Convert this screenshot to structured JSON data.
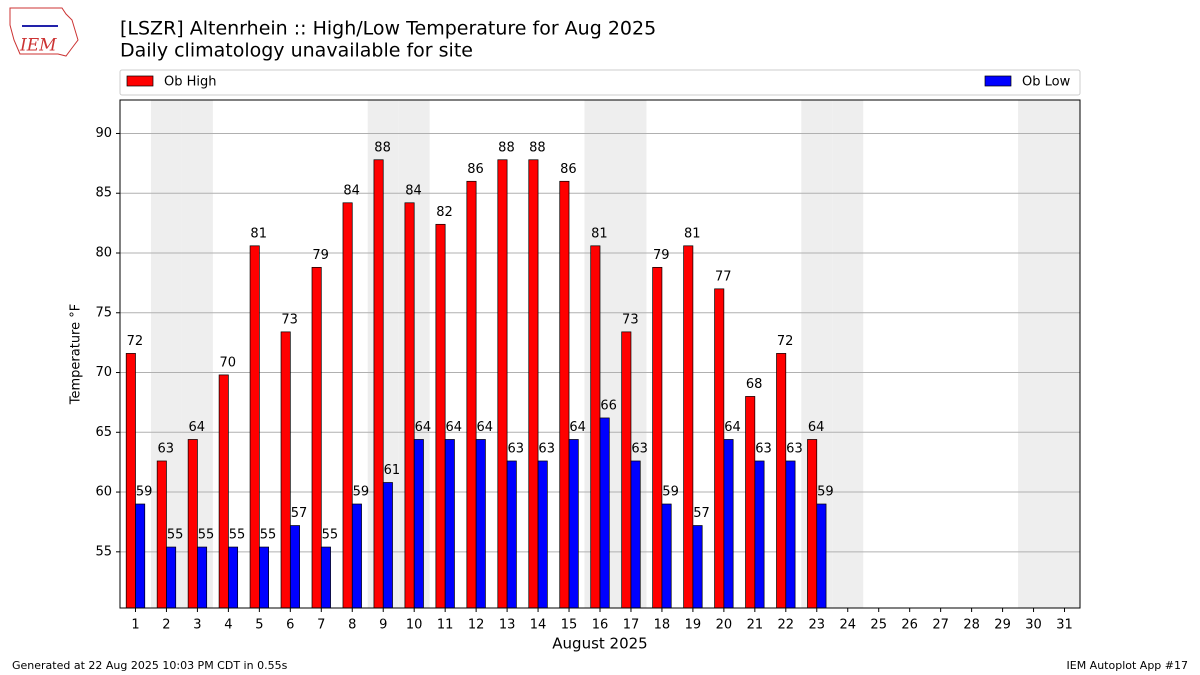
{
  "chart_data": {
    "type": "bar",
    "title": "[LSZR] Altenrhein :: High/Low Temperature for Aug 2025",
    "subtitle": "Daily climatology unavailable for site",
    "xlabel": "August 2025",
    "ylabel": "Temperature °F",
    "logo_text": "IEM",
    "footer_left": "Generated at 22 Aug 2025 10:03 PM CDT in 0.55s",
    "footer_right": "IEM Autoplot App #17",
    "categories": [
      "1",
      "2",
      "3",
      "4",
      "5",
      "6",
      "7",
      "8",
      "9",
      "10",
      "11",
      "12",
      "13",
      "14",
      "15",
      "16",
      "17",
      "18",
      "19",
      "20",
      "21",
      "22",
      "23",
      "24",
      "25",
      "26",
      "27",
      "28",
      "29",
      "30",
      "31"
    ],
    "shaded_categories": [
      "2",
      "3",
      "9",
      "10",
      "16",
      "17",
      "23",
      "24",
      "30",
      "31"
    ],
    "series": [
      {
        "name": "Ob High",
        "color": "#ff0000",
        "values": [
          71.6,
          62.6,
          64.4,
          69.8,
          80.6,
          73.4,
          78.8,
          84.2,
          87.8,
          84.2,
          82.4,
          86.0,
          87.8,
          87.8,
          86.0,
          80.6,
          73.4,
          78.8,
          80.6,
          77.0,
          68.0,
          71.6,
          64.4,
          null,
          null,
          null,
          null,
          null,
          null,
          null,
          null
        ],
        "value_labels": [
          "72",
          "63",
          "64",
          "70",
          "81",
          "73",
          "79",
          "84",
          "88",
          "84",
          "82",
          "86",
          "88",
          "88",
          "86",
          "81",
          "73",
          "79",
          "81",
          "77",
          "68",
          "72",
          "64",
          null,
          null,
          null,
          null,
          null,
          null,
          null,
          null
        ]
      },
      {
        "name": "Ob Low",
        "color": "#0000ff",
        "values": [
          59.0,
          55.4,
          55.4,
          55.4,
          55.4,
          57.2,
          55.4,
          59.0,
          60.8,
          64.4,
          64.4,
          64.4,
          62.6,
          62.6,
          64.4,
          66.2,
          62.6,
          59.0,
          57.2,
          64.4,
          62.6,
          62.6,
          59.0,
          null,
          null,
          null,
          null,
          null,
          null,
          null,
          null
        ],
        "value_labels": [
          "59",
          "55",
          "55",
          "55",
          "55",
          "57",
          "55",
          "59",
          "61",
          "64",
          "64",
          "64",
          "63",
          "63",
          "64",
          "66",
          "63",
          "59",
          "57",
          "64",
          "63",
          "63",
          "59",
          null,
          null,
          null,
          null,
          null,
          null,
          null,
          null
        ]
      }
    ],
    "ylim": [
      50.3,
      92.8
    ],
    "yticks": [
      55,
      60,
      65,
      70,
      75,
      80,
      85,
      90
    ],
    "grid": true
  }
}
